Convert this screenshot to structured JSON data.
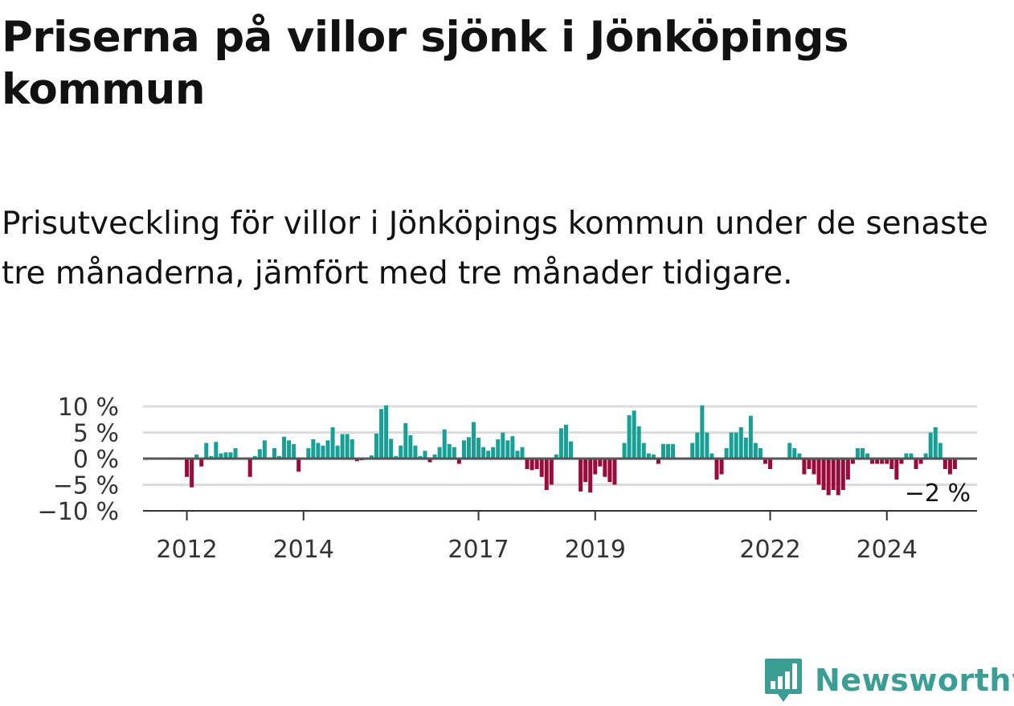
{
  "title": "Priserna på villor sjönk i Jönköpings kommun",
  "subtitle": "Prisutveckling för villor i Jönköpings kommun under de senaste tre månaderna, jämfört med tre månader tidigare.",
  "brand": {
    "name": "Newsworthy",
    "icon": "newsworthy-logo-icon",
    "color": "#3a9e94"
  },
  "chart_data": {
    "type": "bar",
    "title": "",
    "xlabel": "",
    "ylabel": "",
    "unit": "%",
    "ylim": [
      -10,
      10
    ],
    "y_ticks": [
      {
        "value": 10,
        "label": "10 %"
      },
      {
        "value": 5,
        "label": "5 %"
      },
      {
        "value": 0,
        "label": "0 %"
      },
      {
        "value": -5,
        "label": "−5 %"
      },
      {
        "value": -10,
        "label": "−10 %"
      }
    ],
    "x_ticks": [
      {
        "value": "2012-01",
        "label": "2012"
      },
      {
        "value": "2014-01",
        "label": "2014"
      },
      {
        "value": "2017-01",
        "label": "2017"
      },
      {
        "value": "2019-01",
        "label": "2019"
      },
      {
        "value": "2022-01",
        "label": "2022"
      },
      {
        "value": "2024-01",
        "label": "2024"
      }
    ],
    "start_month": "2011-12",
    "grid": true,
    "colors": {
      "positive": "#16a096",
      "negative": "#9b0a3c",
      "zero_line": "#555555",
      "grid": "#dddddd"
    },
    "last_value_label": "−2 %",
    "values": [
      0,
      -3.5,
      -5.5,
      0.8,
      -1.5,
      3,
      0.5,
      3.2,
      1,
      1.2,
      1.2,
      2,
      0,
      0,
      -3.5,
      0.5,
      1.8,
      3.5,
      0,
      2,
      0.5,
      4.2,
      3.5,
      2.8,
      -2.5,
      0,
      2,
      3.7,
      3,
      2.5,
      3.5,
      6,
      2.5,
      4.7,
      4.7,
      3.7,
      -0.5,
      -0.3,
      0,
      0.6,
      4.8,
      9.5,
      10.2,
      3.8,
      0.5,
      2.5,
      6.8,
      4.5,
      2.5,
      0.5,
      1.5,
      -0.7,
      0.8,
      2.2,
      5.6,
      2.8,
      2.2,
      -1,
      3.5,
      4.1,
      7,
      4,
      2.2,
      1.5,
      2.2,
      3.7,
      5,
      3.5,
      4.3,
      1.5,
      2.2,
      -2,
      -2.2,
      -2,
      -3.5,
      -6,
      -5,
      0.8,
      5.8,
      6.5,
      3.3,
      0,
      -6.3,
      -4.5,
      -6.5,
      -3,
      -1.5,
      -3.5,
      -4.5,
      -5,
      0,
      3,
      8.3,
      9.2,
      6.2,
      3,
      1,
      0.8,
      -1,
      2.8,
      2.8,
      2.8,
      0,
      0,
      0,
      3,
      5,
      10.2,
      5,
      1,
      -4,
      -3,
      2,
      5,
      5,
      6,
      4,
      8.2,
      3,
      2,
      -1,
      -2,
      0,
      0,
      0,
      3,
      2,
      1,
      -3,
      -2,
      -3,
      -5,
      -6,
      -7,
      -6,
      -7,
      -6,
      -4,
      -1,
      2,
      2,
      1,
      -1,
      -1,
      -1,
      -1,
      -2,
      -4,
      -1,
      1,
      1,
      -2,
      -1,
      1,
      5,
      6,
      3,
      -2,
      -3,
      -2
    ]
  }
}
